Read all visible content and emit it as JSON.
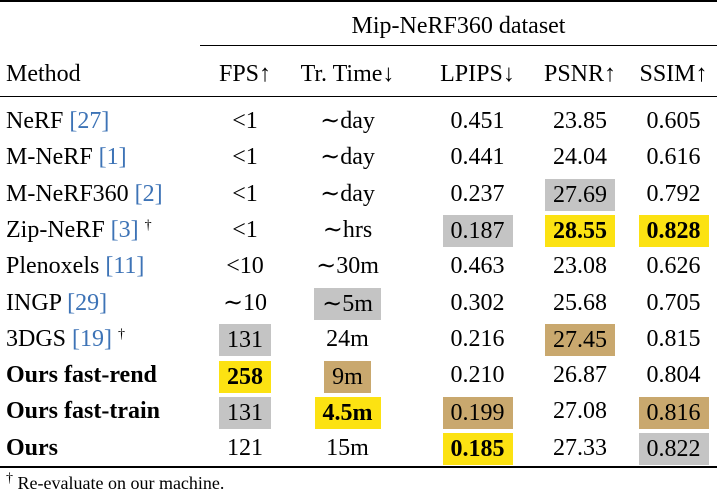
{
  "group_header": "Mip-NeRF360 dataset",
  "columns": {
    "method": "Method",
    "fps": "FPS↑",
    "time": "Tr. Time↓",
    "lpips": "LPIPS↓",
    "psnr": "PSNR↑",
    "ssim": "SSIM↑"
  },
  "highlight_colors": {
    "gold": "#fce212",
    "bronze": "#c9a86e",
    "silver": "#c4c4c4"
  },
  "rows": [
    {
      "name": "NeRF",
      "ref": "[27]",
      "dagger": "",
      "bold": false,
      "fps": "<1",
      "time": "∼day",
      "lpips": "0.451",
      "psnr": "23.85",
      "ssim": "0.605",
      "hl": {}
    },
    {
      "name": "M-NeRF",
      "ref": "[1]",
      "dagger": "",
      "bold": false,
      "fps": "<1",
      "time": "∼day",
      "lpips": "0.441",
      "psnr": "24.04",
      "ssim": "0.616",
      "hl": {}
    },
    {
      "name": "M-NeRF360",
      "ref": "[2]",
      "dagger": "",
      "bold": false,
      "fps": "<1",
      "time": "∼day",
      "lpips": "0.237",
      "psnr": "27.69",
      "ssim": "0.792",
      "hl": {
        "psnr": "silver"
      }
    },
    {
      "name": "Zip-NeRF",
      "ref": "[3]",
      "dagger": "†",
      "bold": false,
      "fps": "<1",
      "time": "∼hrs",
      "lpips": "0.187",
      "psnr": "28.55",
      "ssim": "0.828",
      "hl": {
        "lpips": "silver",
        "psnr": "gold",
        "ssim": "gold"
      },
      "boldcells": [
        "psnr",
        "ssim"
      ]
    },
    {
      "name": "Plenoxels",
      "ref": "[11]",
      "dagger": "",
      "bold": false,
      "fps": "<10",
      "time": "∼30m",
      "lpips": "0.463",
      "psnr": "23.08",
      "ssim": "0.626",
      "hl": {}
    },
    {
      "name": "INGP",
      "ref": "[29]",
      "dagger": "",
      "bold": false,
      "fps": "∼10",
      "time": "∼5m",
      "lpips": "0.302",
      "psnr": "25.68",
      "ssim": "0.705",
      "hl": {
        "time": "silver"
      }
    },
    {
      "name": "3DGS",
      "ref": "[19]",
      "dagger": "†",
      "bold": false,
      "fps": "131",
      "time": "24m",
      "lpips": "0.216",
      "psnr": "27.45",
      "ssim": "0.815",
      "hl": {
        "fps": "silver",
        "psnr": "bronze"
      }
    },
    {
      "name": "Ours fast-rend",
      "ref": "",
      "dagger": "",
      "bold": true,
      "fps": "258",
      "time": "9m",
      "lpips": "0.210",
      "psnr": "26.87",
      "ssim": "0.804",
      "hl": {
        "fps": "gold",
        "time": "bronze"
      },
      "boldcells": [
        "fps"
      ]
    },
    {
      "name": "Ours fast-train",
      "ref": "",
      "dagger": "",
      "bold": true,
      "fps": "131",
      "time": "4.5m",
      "lpips": "0.199",
      "psnr": "27.08",
      "ssim": "0.816",
      "hl": {
        "fps": "silver",
        "time": "gold",
        "lpips": "bronze",
        "ssim": "bronze"
      },
      "boldcells": [
        "time"
      ]
    },
    {
      "name": "Ours",
      "ref": "",
      "dagger": "",
      "bold": true,
      "fps": "121",
      "time": "15m",
      "lpips": "0.185",
      "psnr": "27.33",
      "ssim": "0.822",
      "hl": {
        "lpips": "gold",
        "ssim": "silver"
      },
      "boldcells": [
        "lpips"
      ]
    }
  ],
  "footnote": {
    "mark": "†",
    "text": " Re-evaluate on our machine."
  }
}
